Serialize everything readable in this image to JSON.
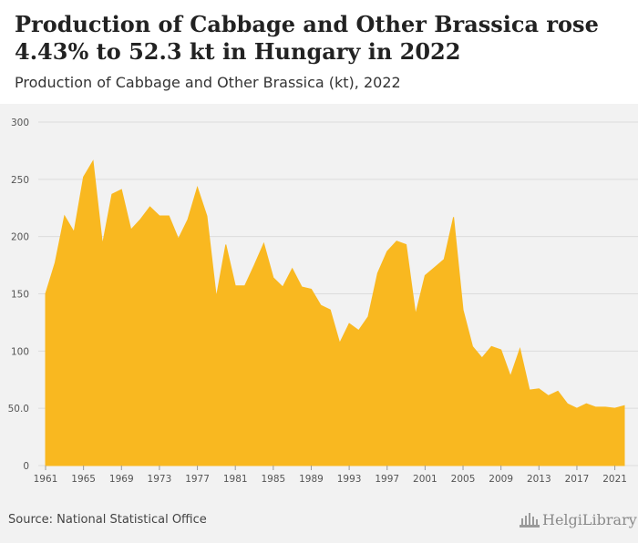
{
  "title": "Production of Cabbage and Other Brassica rose 4.43% to 52.3 kt in Hungary in 2022",
  "subtitle": "Production of Cabbage and Other Brassica (kt), 2022",
  "source": "Source: National Statistical Office",
  "logo_text": "HelgiLibrary",
  "colors": {
    "area": "#f9b820",
    "grid": "#dcdcdc",
    "axis_text": "#555555"
  },
  "chart_data": {
    "type": "area",
    "title": "Production of Cabbage and Other Brassica rose 4.43% to 52.3 kt in Hungary in 2022",
    "subtitle": "Production of Cabbage and Other Brassica (kt), 2022",
    "xlabel": "",
    "ylabel": "",
    "ylim": [
      0,
      300
    ],
    "yticks": [
      0,
      50,
      100,
      150,
      200,
      250,
      300
    ],
    "ytick_labels": [
      "0",
      "50.0",
      "100",
      "150",
      "200",
      "250",
      "300"
    ],
    "xticks": [
      1961,
      1965,
      1969,
      1973,
      1977,
      1981,
      1985,
      1989,
      1993,
      1997,
      2001,
      2005,
      2009,
      2013,
      2017,
      2021
    ],
    "grid": true,
    "legend": "none",
    "x": [
      1961,
      1962,
      1963,
      1964,
      1965,
      1966,
      1967,
      1968,
      1969,
      1970,
      1971,
      1972,
      1973,
      1974,
      1975,
      1976,
      1977,
      1978,
      1979,
      1980,
      1981,
      1982,
      1983,
      1984,
      1985,
      1986,
      1987,
      1988,
      1989,
      1990,
      1991,
      1992,
      1993,
      1994,
      1995,
      1996,
      1997,
      1998,
      1999,
      2000,
      2001,
      2002,
      2003,
      2004,
      2005,
      2006,
      2007,
      2008,
      2009,
      2010,
      2011,
      2012,
      2013,
      2014,
      2015,
      2016,
      2017,
      2018,
      2019,
      2020,
      2021,
      2022
    ],
    "values": [
      150,
      177,
      218,
      204,
      252,
      266,
      193,
      237,
      241,
      206,
      215,
      226,
      218,
      218,
      198,
      215,
      243,
      218,
      147,
      193,
      157,
      157,
      175,
      194,
      164,
      156,
      172,
      156,
      154,
      140,
      136,
      107,
      124,
      118,
      130,
      168,
      187,
      196,
      193,
      132,
      166,
      173,
      180,
      217,
      136,
      104,
      94,
      104,
      101,
      78,
      102,
      66,
      67,
      61,
      65,
      54,
      50,
      54,
      51,
      51,
      50,
      52.3
    ]
  }
}
